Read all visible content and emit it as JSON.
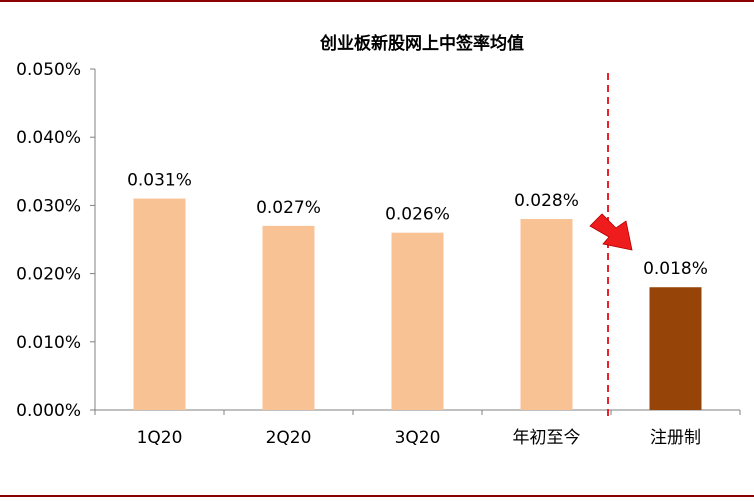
{
  "chart_data": {
    "type": "bar",
    "title": "创业板新股网上中签率均值",
    "categories": [
      "1Q20",
      "2Q20",
      "3Q20",
      "年初至今",
      "注册制"
    ],
    "values": [
      0.031,
      0.027,
      0.026,
      0.028,
      0.018
    ],
    "value_labels": [
      "0.031%",
      "0.027%",
      "0.026%",
      "0.028%",
      "0.018%"
    ],
    "unit": "%",
    "ylim": [
      0,
      0.05
    ],
    "yticks": [
      0,
      0.01,
      0.02,
      0.03,
      0.04,
      0.05
    ],
    "ytick_labels": [
      "0.000%",
      "0.010%",
      "0.020%",
      "0.030%",
      "0.040%",
      "0.050%"
    ],
    "colors": [
      "#f9c295",
      "#f9c295",
      "#f9c295",
      "#f9c295",
      "#964407"
    ],
    "separator_color": "#e8212b",
    "arrow_color": "#ee1c1c",
    "border_color": "#8b0000",
    "grid": false,
    "legend": "none"
  }
}
